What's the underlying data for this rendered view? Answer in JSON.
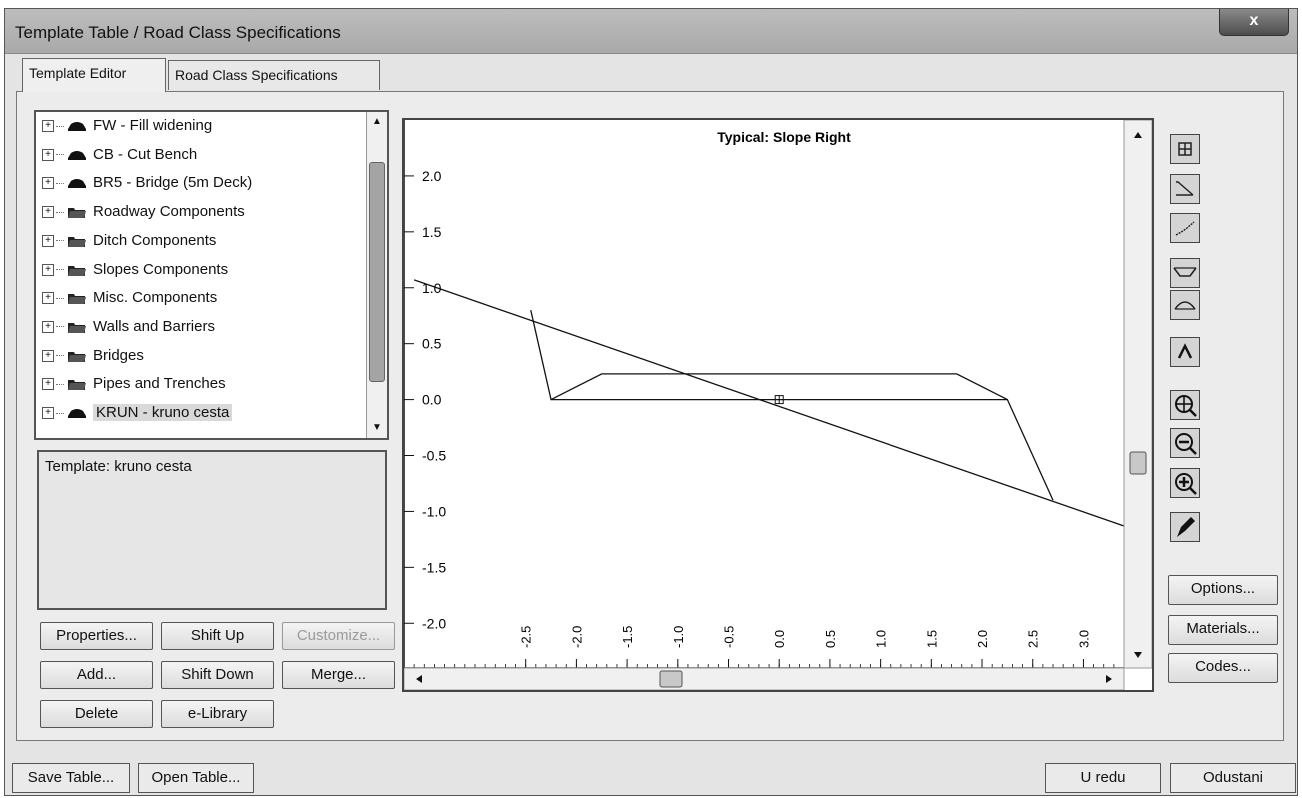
{
  "window": {
    "title": "Template Table / Road Class Specifications",
    "close_glyph": "x"
  },
  "tabs": [
    {
      "label": "Template Editor",
      "active": true
    },
    {
      "label": "Road Class Specifications",
      "active": false
    }
  ],
  "tree": {
    "items": [
      {
        "label": "FW - Fill widening",
        "icon": "template-icon"
      },
      {
        "label": "CB - Cut Bench",
        "icon": "template-icon"
      },
      {
        "label": "BR5 - Bridge (5m Deck)",
        "icon": "template-icon"
      },
      {
        "label": "Roadway Components",
        "icon": "folder-icon"
      },
      {
        "label": "Ditch Components",
        "icon": "folder-icon"
      },
      {
        "label": "Slopes Components",
        "icon": "folder-icon"
      },
      {
        "label": "Misc. Components",
        "icon": "folder-icon"
      },
      {
        "label": "Walls and Barriers",
        "icon": "folder-icon"
      },
      {
        "label": "Bridges",
        "icon": "folder-icon"
      },
      {
        "label": "Pipes and Trenches",
        "icon": "folder-icon"
      },
      {
        "label": "KRUN - kruno cesta",
        "icon": "template-icon",
        "selected": true
      }
    ]
  },
  "description": {
    "text": "Template: kruno cesta"
  },
  "buttons": {
    "properties": "Properties...",
    "shift_up": "Shift Up",
    "customize": "Customize...",
    "add": "Add...",
    "shift_down": "Shift Down",
    "merge": "Merge...",
    "delete": "Delete",
    "elibrary": "e-Library",
    "options": "Options...",
    "materials": "Materials...",
    "codes": "Codes...",
    "save_table": "Save Table...",
    "open_table": "Open Table...",
    "ok": "U redu",
    "cancel": "Odustani"
  },
  "chart_data": {
    "type": "line",
    "title": "Typical: Slope Right",
    "xlabel": "",
    "ylabel": "",
    "xlim": [
      -3.7,
      3.4
    ],
    "ylim": [
      -2.4,
      2.5
    ],
    "x_ticks": [
      "-2.5",
      "-2.0",
      "-1.5",
      "-1.0",
      "-0.5",
      "0.0",
      "0.5",
      "1.0",
      "1.5",
      "2.0",
      "2.5",
      "3.0"
    ],
    "y_ticks": [
      "2.0",
      "1.5",
      "1.0",
      "0.5",
      "0.0",
      "-0.5",
      "-1.0",
      "-1.5",
      "-2.0"
    ],
    "series": [
      {
        "points": [
          [
            -3.6,
            1.07
          ],
          [
            3.4,
            -1.13
          ]
        ]
      },
      {
        "points": [
          [
            -2.45,
            0.8
          ],
          [
            -2.25,
            0.0
          ],
          [
            2.25,
            0.0
          ],
          [
            2.7,
            -0.9
          ]
        ]
      },
      {
        "points": [
          [
            -2.25,
            0.0
          ],
          [
            -1.75,
            0.23
          ],
          [
            1.75,
            0.23
          ],
          [
            2.25,
            0.0
          ]
        ]
      }
    ],
    "origin_marker": [
      0,
      0
    ],
    "grid": false
  }
}
